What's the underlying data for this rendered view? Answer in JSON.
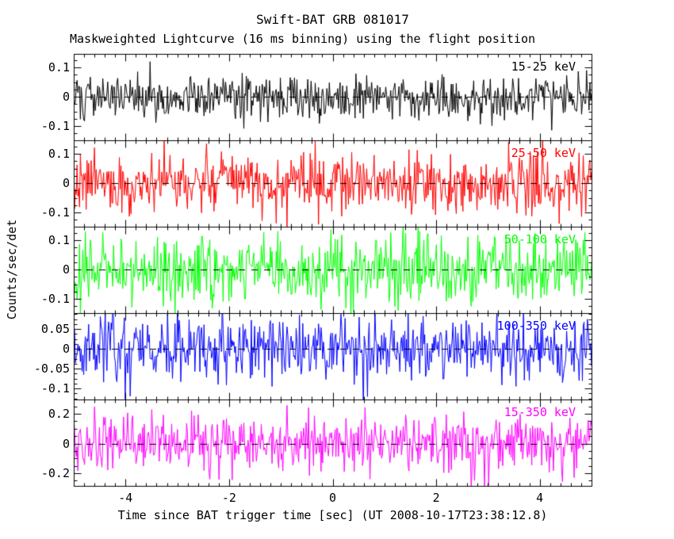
{
  "chart_data": {
    "type": "line",
    "title": "Swift-BAT GRB 081017",
    "subtitle": "Maskweighted Lightcurve (16 ms binning) using the flight position",
    "xlabel": "Time since BAT trigger time [sec] (UT 2008-10-17T23:38:12.8)",
    "ylabel": "Counts/sec/det",
    "x_range": [
      -5,
      5
    ],
    "x_ticks": [
      -4,
      -2,
      0,
      2,
      4
    ],
    "x_tick_labels": [
      "-4",
      "-2",
      "0",
      "2",
      "4"
    ],
    "x_minor_step": 0.2,
    "bin_seconds": 0.016,
    "n_points": 625,
    "grid": "off",
    "legend": "none",
    "zero_line": {
      "style": "dashed",
      "color": "#000000",
      "value": 0
    },
    "panels": [
      {
        "band_label": "15-25 keV",
        "color": "#000000",
        "ylim": [
          -0.148,
          0.146
        ],
        "y_ticks": [
          0.1,
          0,
          -0.1
        ],
        "y_tick_labels": [
          "0.1",
          "0",
          "-0.1"
        ],
        "y_minor_step": 0.025,
        "mean": 0,
        "noise_sigma": 0.037,
        "seed": 101
      },
      {
        "band_label": "25-50 keV",
        "color": "#ff0000",
        "ylim": [
          -0.148,
          0.146
        ],
        "y_ticks": [
          0.1,
          0,
          -0.1
        ],
        "y_tick_labels": [
          "0.1",
          "0",
          "-0.1"
        ],
        "y_minor_step": 0.025,
        "mean": 0,
        "noise_sigma": 0.05,
        "seed": 202
      },
      {
        "band_label": "50-100 keV",
        "color": "#00ff00",
        "ylim": [
          -0.148,
          0.146
        ],
        "y_ticks": [
          0.1,
          0,
          -0.1
        ],
        "y_tick_labels": [
          "0.1",
          "0",
          "-0.1"
        ],
        "y_minor_step": 0.025,
        "mean": 0,
        "noise_sigma": 0.055,
        "seed": 303
      },
      {
        "band_label": "100-350 keV",
        "color": "#0000ff",
        "ylim": [
          -0.128,
          0.09
        ],
        "y_ticks": [
          0.05,
          0,
          -0.05,
          -0.1
        ],
        "y_tick_labels": [
          "0.05",
          "0",
          "-0.05",
          "-0.1"
        ],
        "y_minor_step": 0.0125,
        "mean": 0,
        "noise_sigma": 0.042,
        "seed": 404
      },
      {
        "band_label": "15-350 keV",
        "color": "#ff00ff",
        "ylim": [
          -0.285,
          0.296
        ],
        "y_ticks": [
          0.2,
          0,
          -0.2
        ],
        "y_tick_labels": [
          "0.2",
          "0",
          "-0.2"
        ],
        "y_minor_step": 0.05,
        "mean": 0,
        "noise_sigma": 0.1,
        "seed": 505
      }
    ]
  }
}
